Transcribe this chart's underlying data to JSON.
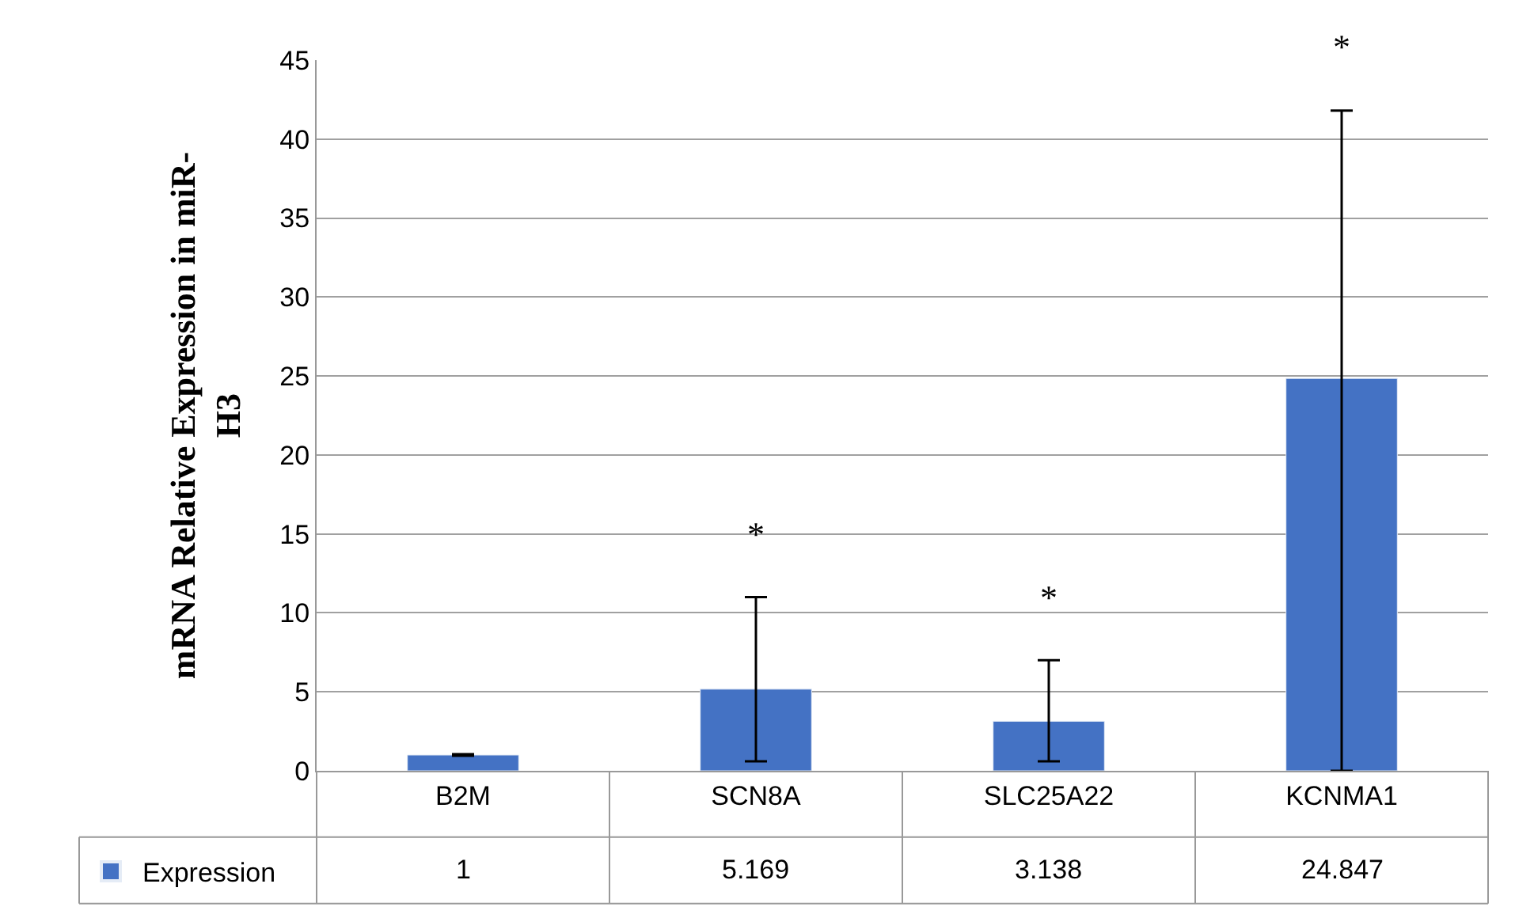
{
  "chart_data": {
    "type": "bar",
    "ylabel": "mRNA Relative Expression in miR-H3",
    "categories": [
      "B2M",
      "SCN8A",
      "SLC25A22",
      "KCNMA1"
    ],
    "series": [
      {
        "name": "Expression",
        "color": "#4472c4",
        "values": [
          1,
          5.169,
          3.138,
          24.847
        ],
        "errors": [
          [
            0.95,
            1.05
          ],
          [
            0.6,
            11.0
          ],
          [
            0.6,
            7.0
          ],
          [
            0,
            41.8
          ]
        ]
      }
    ],
    "data_labels": true,
    "ylim": [
      0,
      45
    ],
    "yticks": [
      0,
      5,
      10,
      15,
      20,
      25,
      30,
      35,
      40,
      45
    ],
    "grid": "y",
    "legend": "bottom left",
    "annotations": [
      "*",
      "*",
      "*"
    ]
  }
}
